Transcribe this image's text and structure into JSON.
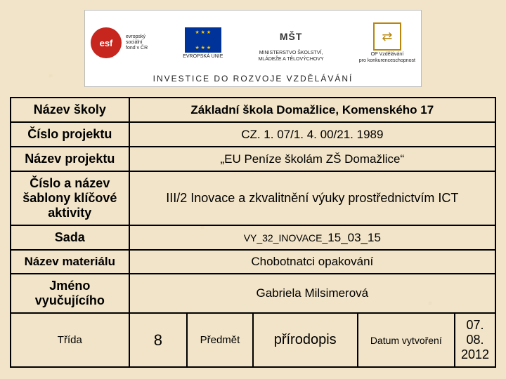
{
  "colors": {
    "page_bg": "#f2e4c8",
    "border": "#000000",
    "banner_bg": "#ffffff",
    "esf_red": "#c7261e",
    "eu_blue": "#003399",
    "eu_gold": "#ffcc00",
    "op_border": "#b8860b"
  },
  "banner": {
    "logos": {
      "esf": {
        "abbr": "esf",
        "line1": "evropský",
        "line2": "sociální",
        "line3": "fond v ČR"
      },
      "eu": {
        "caption": "EVROPSKÁ UNIE"
      },
      "msmt": {
        "text": "MŠT",
        "caption1": "MINISTERSTVO ŠKOLSTVÍ,",
        "caption2": "MLÁDEŽE A TĚLOVÝCHOVY"
      },
      "op": {
        "caption1": "OP Vzdělávání",
        "caption2": "pro konkurenceschopnost"
      }
    },
    "motto": "INVESTICE DO ROZVOJE VZDĚLÁVÁNÍ"
  },
  "table": {
    "rows": [
      {
        "label": "Název školy",
        "value": "Základní škola Domažlice, Komenského 17"
      },
      {
        "label": "Číslo projektu",
        "value": "CZ. 1. 07/1. 4. 00/21. 1989"
      },
      {
        "label": "Název projektu",
        "value": "„EU Peníze školám ZŠ Domažlice“"
      },
      {
        "label": "Číslo a název šablony klíčové aktivity",
        "value": "III/2 Inovace a zkvalitnění výuky prostřednictvím ICT"
      },
      {
        "label": "Sada",
        "value_prefix": "VY_32_INOVACE_",
        "value_suffix": "15_03_15"
      },
      {
        "label": "Název materiálu",
        "value": "Chobotnatci opakování"
      },
      {
        "label": "Jméno vyučujícího",
        "value": "Gabriela Milsimerová"
      }
    ],
    "lastrow": {
      "trida_label": "Třída",
      "trida_value": "8",
      "predmet_label": "Předmět",
      "predmet_value": "přírodopis",
      "datum_label": "Datum vytvoření",
      "datum_value": "07. 08. 2012"
    }
  }
}
